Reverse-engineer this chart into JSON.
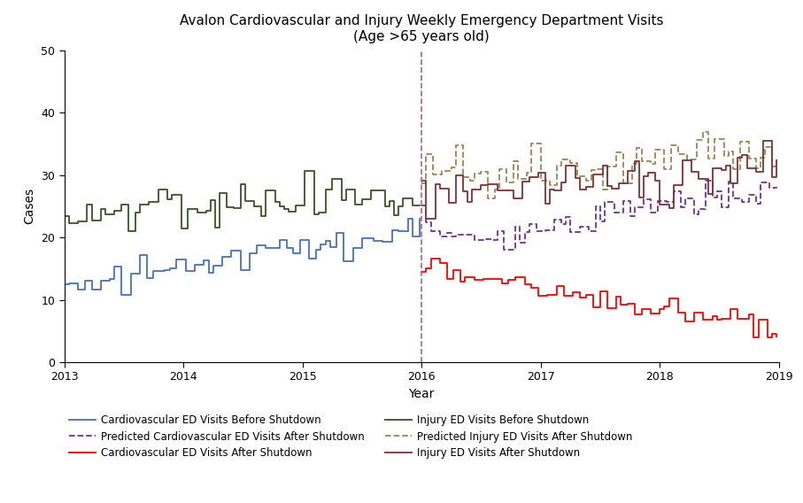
{
  "title": "Avalon Cardiovascular and Injury Weekly Emergency Department Visits\n(Age >65 years old)",
  "xlabel": "Year",
  "ylabel": "Cases",
  "ylim": [
    0,
    50
  ],
  "yticks": [
    0,
    10,
    20,
    30,
    40,
    50
  ],
  "xlim": [
    2013.0,
    2019.0
  ],
  "xticks": [
    2013,
    2014,
    2015,
    2016,
    2017,
    2018,
    2019
  ],
  "shutdown_x": 2016.0,
  "colors": {
    "cardio_before": "#4472C4",
    "injury_before": "#375623",
    "pred_cardio_after": "#7030A0",
    "pred_injury_after": "#948A54",
    "cardio_after": "#FF0000",
    "injury_after": "#833232"
  },
  "vline_color": "#C0607A",
  "background": "#FFFFFF",
  "figsize": [
    9.07,
    5.68
  ],
  "dpi": 100
}
